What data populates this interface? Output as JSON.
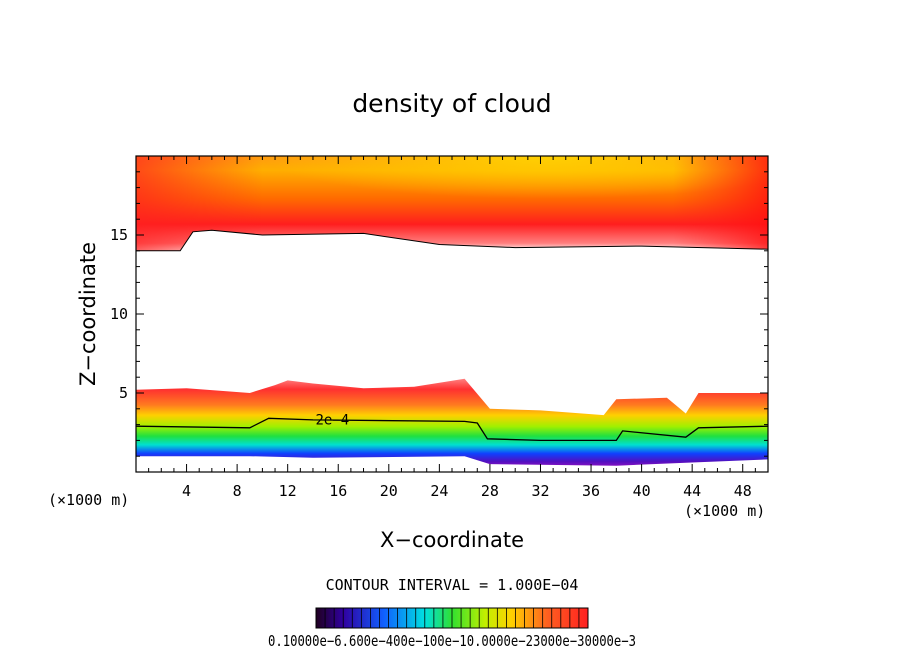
{
  "chart_data": {
    "type": "heatmap",
    "title": "density of cloud",
    "xlabel": "X−coordinate",
    "ylabel": "Z−coordinate",
    "x_unit_left": "(×1000 m)",
    "x_unit_right": "(×1000 m)",
    "xlim": [
      0,
      50
    ],
    "ylim": [
      0,
      20
    ],
    "x_ticks": [
      4,
      8,
      12,
      16,
      20,
      24,
      28,
      32,
      36,
      40,
      44,
      48
    ],
    "y_ticks": [
      5,
      10,
      15
    ],
    "x_tick_labels": [
      "4",
      "8",
      "12",
      "16",
      "20",
      "24",
      "28",
      "32",
      "36",
      "40",
      "44",
      "48"
    ],
    "y_tick_labels": [
      "5",
      "10",
      "15"
    ],
    "contour_interval_text": "CONTOUR INTERVAL = 1.000E−04",
    "contour_label": "2e−4",
    "colorbar_labels_text": "0.10000e−6.600e−400e−100e−10.0000e−23000e−30000e−3",
    "colorbar_range": [
      0.0001,
      0.003
    ],
    "colors": {
      "background": "#ffffff",
      "axis": "#000000",
      "upper_red": "#ff2020",
      "upper_orange": "#ff9a00",
      "upper_yellow": "#ffd200",
      "low_red": "#ff3030",
      "low_green": "#40e040",
      "low_blue": "#2030ff",
      "low_purple": "#7a10c8"
    },
    "upper_layer_base": [
      {
        "x": 0,
        "z": 14.0
      },
      {
        "x": 3.5,
        "z": 14.0
      },
      {
        "x": 4.5,
        "z": 15.2
      },
      {
        "x": 6,
        "z": 15.3
      },
      {
        "x": 10,
        "z": 15.0
      },
      {
        "x": 18,
        "z": 15.1
      },
      {
        "x": 24,
        "z": 14.4
      },
      {
        "x": 30,
        "z": 14.2
      },
      {
        "x": 40,
        "z": 14.3
      },
      {
        "x": 50,
        "z": 14.1
      }
    ],
    "lower_layer_top": [
      {
        "x": 0,
        "z": 5.2
      },
      {
        "x": 4,
        "z": 5.3
      },
      {
        "x": 9,
        "z": 5.0
      },
      {
        "x": 11,
        "z": 5.5
      },
      {
        "x": 12,
        "z": 5.8
      },
      {
        "x": 14,
        "z": 5.6
      },
      {
        "x": 18,
        "z": 5.3
      },
      {
        "x": 22,
        "z": 5.4
      },
      {
        "x": 26,
        "z": 5.9
      },
      {
        "x": 28,
        "z": 4.0
      },
      {
        "x": 32,
        "z": 3.9
      },
      {
        "x": 37,
        "z": 3.6
      },
      {
        "x": 38,
        "z": 4.6
      },
      {
        "x": 42,
        "z": 4.7
      },
      {
        "x": 43.5,
        "z": 3.7
      },
      {
        "x": 44.5,
        "z": 5.0
      },
      {
        "x": 50,
        "z": 5.0
      }
    ],
    "contour_2e4": [
      {
        "x": 0,
        "z": 2.9
      },
      {
        "x": 9,
        "z": 2.8
      },
      {
        "x": 10.5,
        "z": 3.4
      },
      {
        "x": 14,
        "z": 3.3
      },
      {
        "x": 26,
        "z": 3.2
      },
      {
        "x": 27,
        "z": 3.1
      },
      {
        "x": 27.8,
        "z": 2.1
      },
      {
        "x": 32,
        "z": 2.0
      },
      {
        "x": 38,
        "z": 2.0
      },
      {
        "x": 38.5,
        "z": 2.6
      },
      {
        "x": 43.5,
        "z": 2.2
      },
      {
        "x": 44.5,
        "z": 2.8
      },
      {
        "x": 50,
        "z": 2.9
      }
    ],
    "lower_layer_bottom": [
      {
        "x": 0,
        "z": 1.0
      },
      {
        "x": 9,
        "z": 1.0
      },
      {
        "x": 14,
        "z": 0.9
      },
      {
        "x": 26,
        "z": 1.0
      },
      {
        "x": 28,
        "z": 0.5
      },
      {
        "x": 38,
        "z": 0.4
      },
      {
        "x": 44,
        "z": 0.6
      },
      {
        "x": 50,
        "z": 0.8
      }
    ]
  }
}
